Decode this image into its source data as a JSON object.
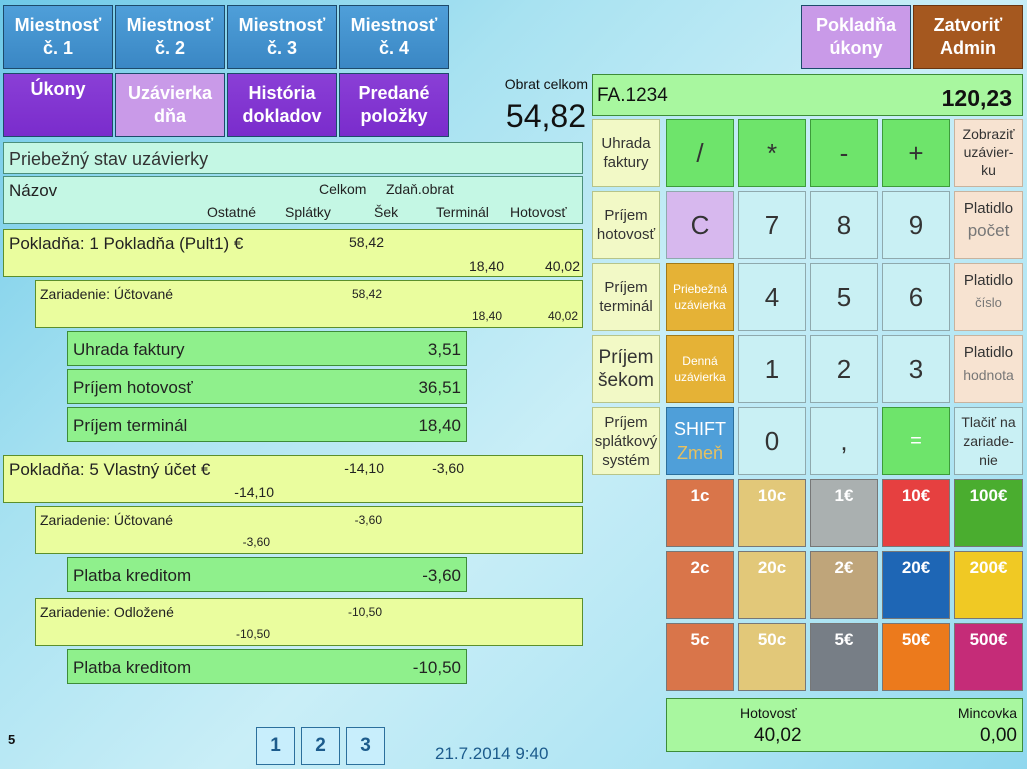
{
  "rooms": [
    {
      "line1": "Miestnosť",
      "line2": "č. 1"
    },
    {
      "line1": "Miestnosť",
      "line2": "č. 2"
    },
    {
      "line1": "Miestnosť",
      "line2": "č. 3"
    },
    {
      "line1": "Miestnosť",
      "line2": "č. 4"
    }
  ],
  "top_right": {
    "cash_ops_line1": "Pokladňa",
    "cash_ops_line2": "úkony",
    "close_line1": "Zatvoriť",
    "close_line2": "Admin"
  },
  "tabs": {
    "ukony": "Úkony",
    "uzavierka_line1": "Uzávierka",
    "uzavierka_line2": "dňa",
    "historia_line1": "História",
    "historia_line2": "dokladov",
    "predane_line1": "Predané",
    "predane_line2": "položky"
  },
  "turnover": {
    "label": "Obrat celkom",
    "value": "54,82"
  },
  "report": {
    "title": "Priebežný stav uzávierky",
    "hdr_name": "Názov",
    "hdr_celkom": "Celkom",
    "hdr_zdan": "Zdaň.obrat",
    "hdr_ostatne": "Ostatné",
    "hdr_splatky": "Splátky",
    "hdr_sek": "Šek",
    "hdr_terminal": "Terminál",
    "hdr_hotovost": "Hotovosť"
  },
  "group1": {
    "title": "Pokladňa: 1 Pokladňa (Pult1) €",
    "celkom": "58,42",
    "terminal": "18,40",
    "hotovost": "40,02",
    "device": {
      "title": "Zariadenie: Účtované",
      "celkom": "58,42",
      "terminal": "18,40",
      "hotovost": "40,02"
    },
    "items": [
      {
        "label": "Uhrada faktury",
        "value": "3,51"
      },
      {
        "label": "Príjem hotovosť",
        "value": "36,51"
      },
      {
        "label": "Príjem terminál",
        "value": "18,40"
      }
    ]
  },
  "group2": {
    "title": "Pokladňa: 5 Vlastný účet €",
    "celkom": "-14,10",
    "zdan": "-3,60",
    "ostatne": "-14,10",
    "device1": {
      "title": "Zariadenie: Účtované",
      "celkom": "-3,60",
      "ostatne": "-3,60"
    },
    "item1": {
      "label": "Platba kreditom",
      "value": "-3,60"
    },
    "device2": {
      "title": "Zariadenie: Odložené",
      "celkom": "-10,50",
      "ostatne": "-10,50"
    },
    "item2": {
      "label": "Platba kreditom",
      "value": "-10,50"
    }
  },
  "footer": {
    "count": "5",
    "pages": [
      "1",
      "2",
      "3"
    ],
    "datetime": "21.7.2014 9:40"
  },
  "invoice": {
    "number": "FA.1234",
    "amount": "120,23"
  },
  "side_buttons": {
    "uhrada_l1": "Uhrada",
    "uhrada_l2": "faktury",
    "hot_l1": "Príjem",
    "hot_l2": "hotovosť",
    "term_l1": "Príjem",
    "term_l2": "terminál",
    "sek_l1": "Príjem",
    "sek_l2": "šekom",
    "spl_l1": "Príjem",
    "spl_l2": "splátkový",
    "spl_l3": "systém"
  },
  "keys": {
    "div": "/",
    "mul": "*",
    "minus": "-",
    "plus": "+",
    "c": "C",
    "k7": "7",
    "k8": "8",
    "k9": "9",
    "k4": "4",
    "k5": "5",
    "k6": "6",
    "k1": "1",
    "k2": "2",
    "k3": "3",
    "k0": "0",
    "comma": ",",
    "eq": "=",
    "shift": "SHIFT",
    "shift_sub": "Zmeň",
    "priebezna_l1": "Priebežná",
    "priebezna_l2": "uzávierka",
    "denna_l1": "Denná",
    "denna_l2": "uzávierka"
  },
  "right_buttons": {
    "zobrazit_l1": "Zobraziť",
    "zobrazit_l2": "uzávier-",
    "zobrazit_l3": "ku",
    "pocet_l1": "Platidlo",
    "pocet_l2": "počet",
    "cislo_l1": "Platidlo",
    "cislo_l2": "číslo",
    "hodnota_l1": "Platidlo",
    "hodnota_l2": "hodnota",
    "tlacit_l1": "Tlačiť na",
    "tlacit_l2": "zariade-",
    "tlacit_l3": "nie"
  },
  "money": [
    "1c",
    "10c",
    "1€",
    "10€",
    "100€",
    "2c",
    "20c",
    "2€",
    "20€",
    "200€",
    "5c",
    "50c",
    "5€",
    "50€",
    "500€"
  ],
  "money_colors": [
    "#d9754a",
    "#e2c879",
    "#aab0b0",
    "#e64040",
    "#4aad2f",
    "#d9754a",
    "#e2c879",
    "#bfa57a",
    "#1e66b5",
    "#f0c924",
    "#d9754a",
    "#e2c879",
    "#777e86",
    "#ec7a1c",
    "#c52c78"
  ],
  "totals": {
    "hotovost_label": "Hotovosť",
    "hotovost": "40,02",
    "mincovka_label": "Mincovka",
    "mincovka": "0,00"
  }
}
